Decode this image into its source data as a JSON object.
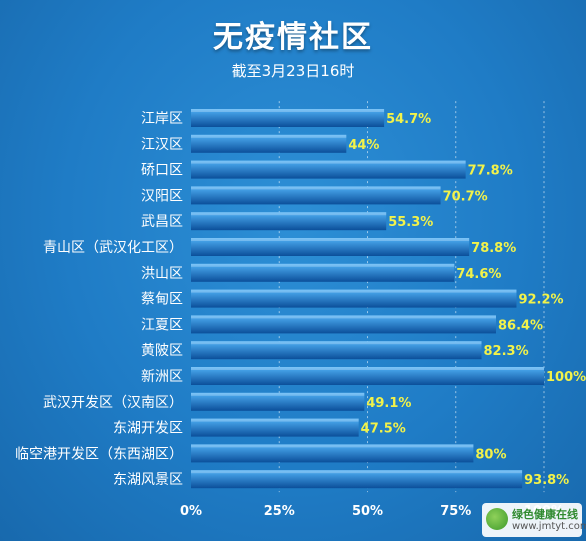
{
  "header": {
    "title": "无疫情社区",
    "subtitle": "截至3月23日16时"
  },
  "watermark": {
    "name": "绿色健康在线",
    "url": "www.jmtyt.com"
  },
  "colors": {
    "bar_light": "#4fb0f5",
    "bar_dark": "#0b4f9a",
    "value_label": "#f2f24a",
    "gridline": "#ffffff"
  },
  "chart_data": {
    "type": "bar",
    "orientation": "horizontal",
    "categories": [
      "江岸区",
      "江汉区",
      "硚口区",
      "汉阳区",
      "武昌区",
      "青山区（武汉化工区）",
      "洪山区",
      "蔡甸区",
      "江夏区",
      "黄陂区",
      "新洲区",
      "武汉开发区（汉南区）",
      "东湖开发区",
      "临空港开发区（东西湖区）",
      "东湖风景区"
    ],
    "values": [
      54.7,
      44,
      77.8,
      70.7,
      55.3,
      78.8,
      74.6,
      92.2,
      86.4,
      82.3,
      100,
      49.1,
      47.5,
      80,
      93.8
    ],
    "value_labels": [
      "54.7%",
      "44%",
      "77.8%",
      "70.7%",
      "55.3%",
      "78.8%",
      "74.6%",
      "92.2%",
      "86.4%",
      "82.3%",
      "100%",
      "49.1%",
      "47.5%",
      "80%",
      "93.8%"
    ],
    "x_ticks": [
      0,
      25,
      50,
      75,
      100
    ],
    "x_tick_labels": [
      "0%",
      "25%",
      "50%",
      "75%",
      "100%"
    ],
    "xlim": [
      0,
      100
    ],
    "grid": true,
    "legend": "none"
  }
}
